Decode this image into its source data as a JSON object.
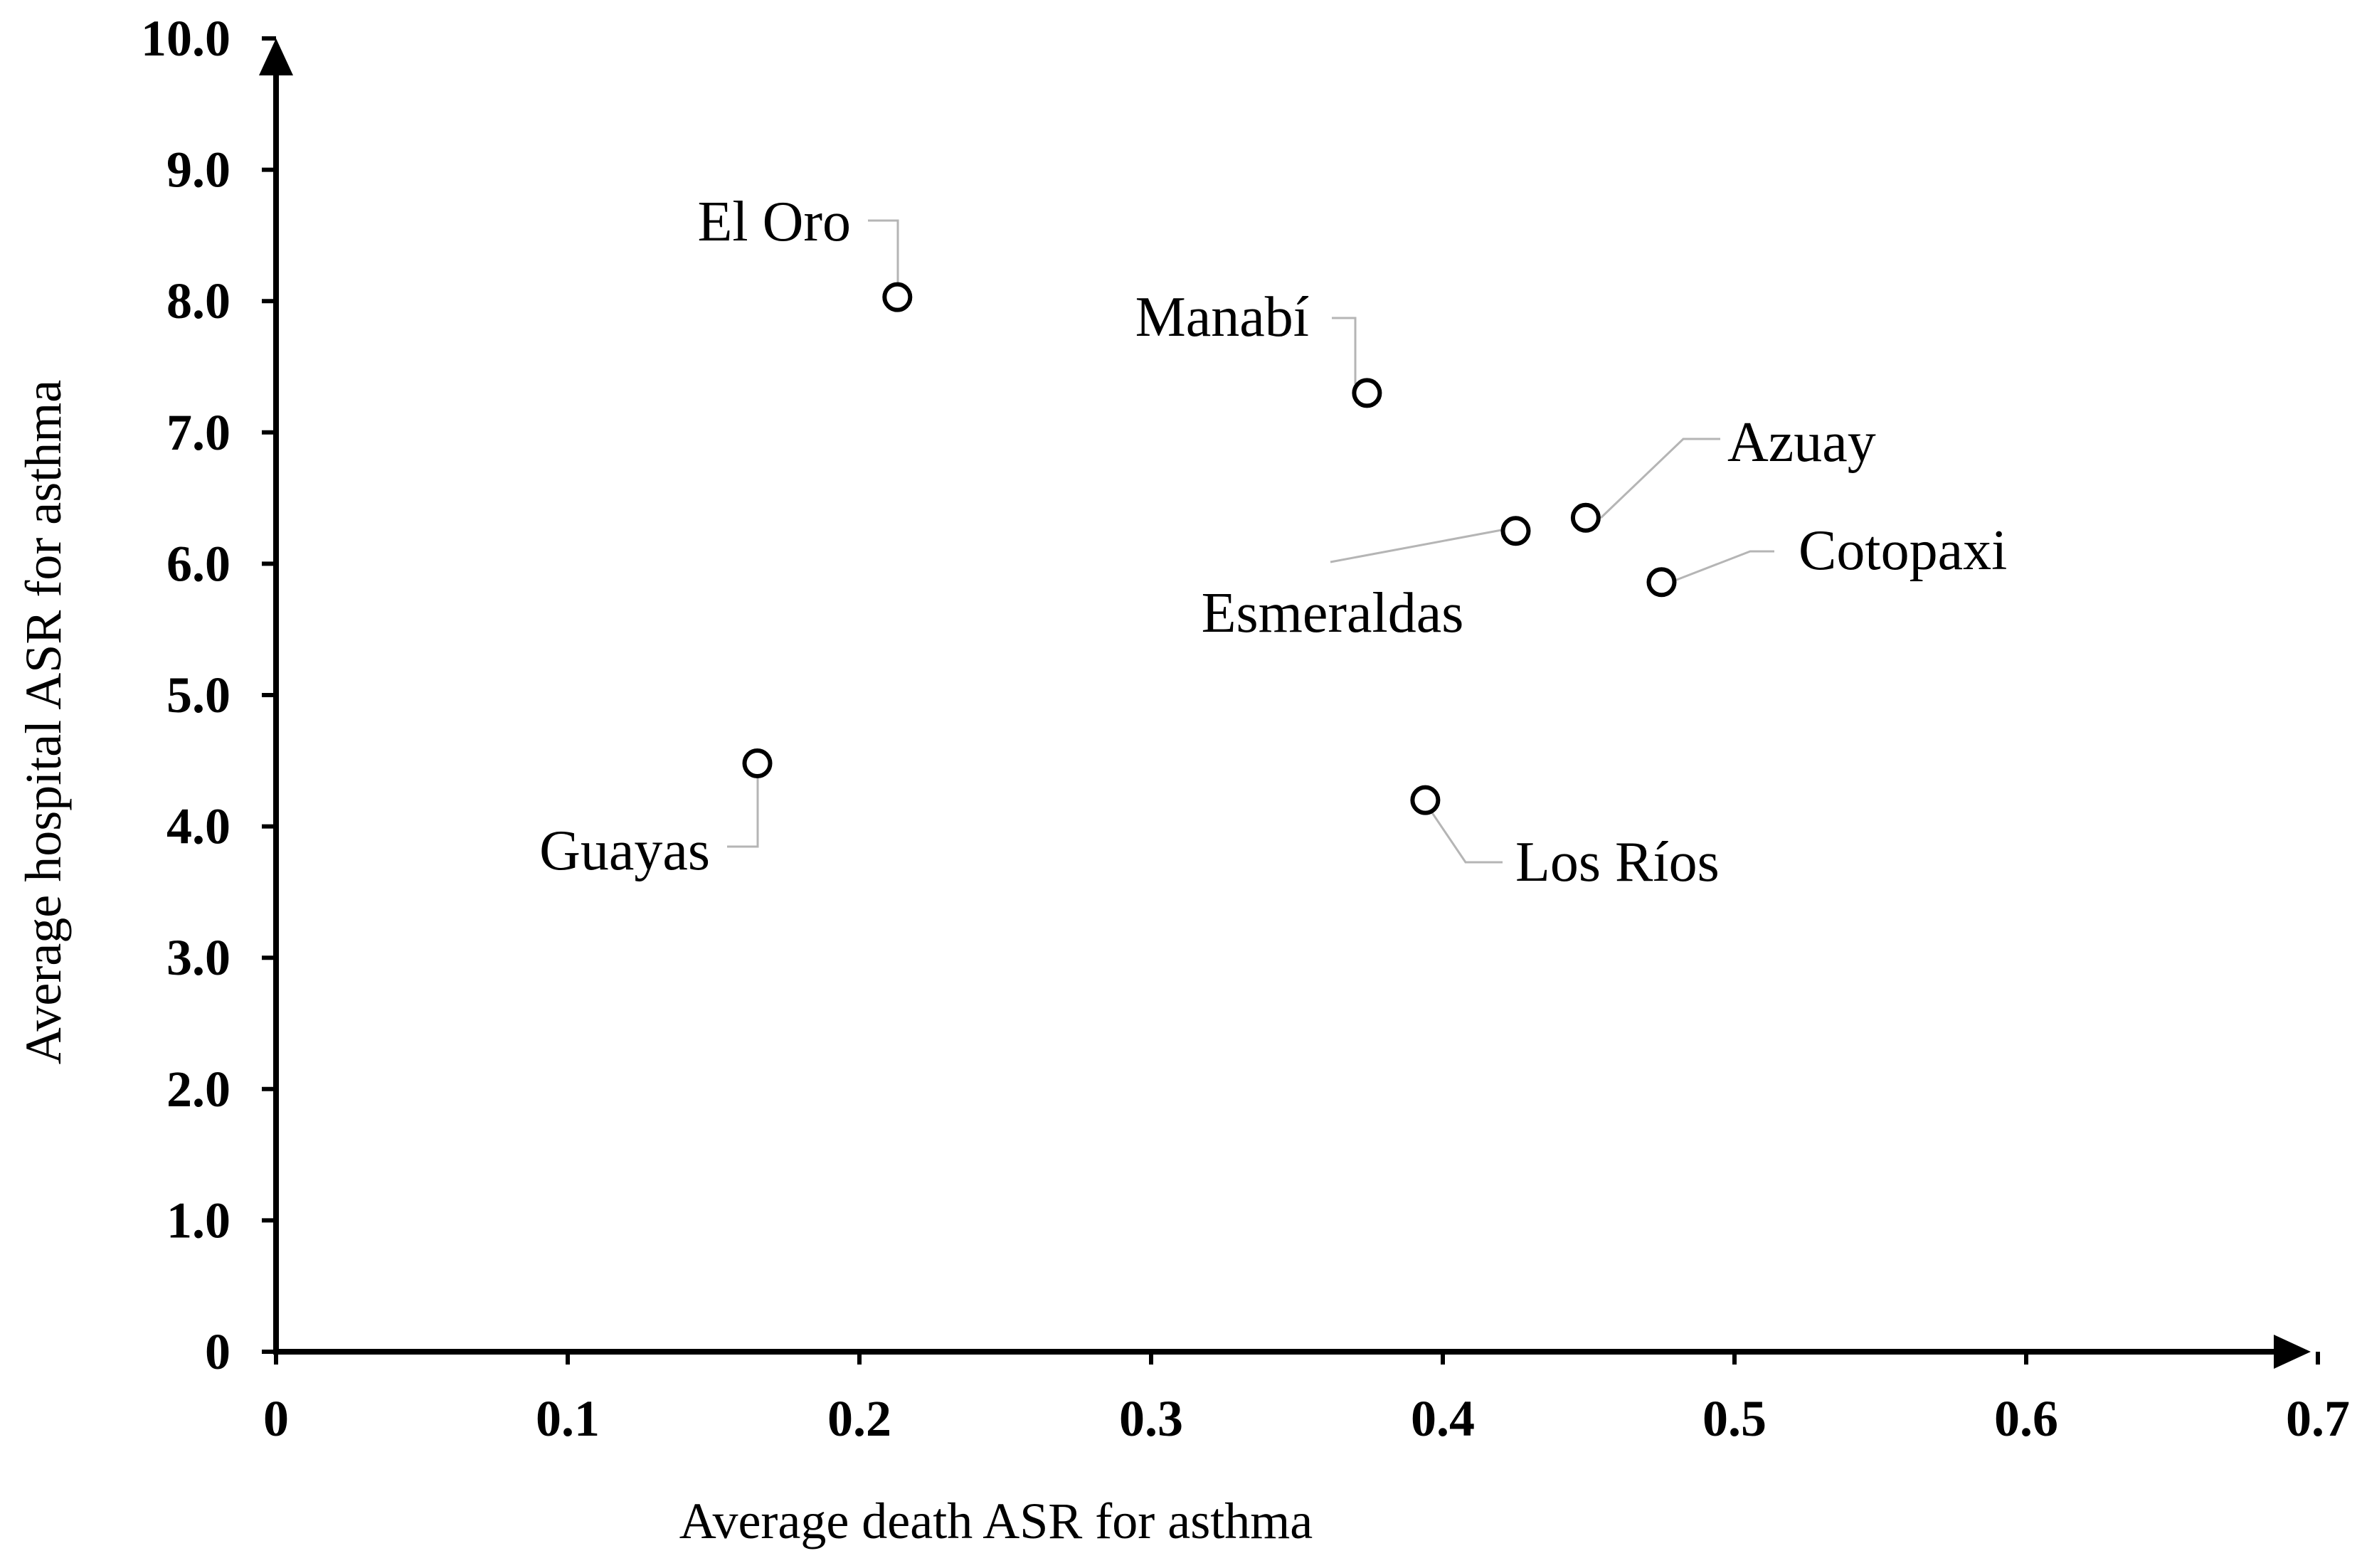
{
  "chart_data": {
    "type": "scatter",
    "xlabel": "Average death ASR for asthma",
    "ylabel": "Average hospital ASR for asthma",
    "xlim": [
      0,
      0.7
    ],
    "ylim": [
      0,
      10.0
    ],
    "x_ticks": [
      "0",
      "0.1",
      "0.2",
      "0.3",
      "0.4",
      "0.5",
      "0.6",
      "0.7"
    ],
    "y_ticks": [
      "0",
      "1.0",
      "2.0",
      "3.0",
      "4.0",
      "5.0",
      "6.0",
      "7.0",
      "8.0",
      "9.0",
      "10.0"
    ],
    "grid": false,
    "legend": "none",
    "marker": "open-circle",
    "points": [
      {
        "label": "El Oro",
        "x": 0.213,
        "y": 8.03
      },
      {
        "label": "Manabí",
        "x": 0.374,
        "y": 7.3
      },
      {
        "label": "Azuay",
        "x": 0.449,
        "y": 6.35
      },
      {
        "label": "Esmeraldas",
        "x": 0.425,
        "y": 6.25
      },
      {
        "label": "Cotopaxi",
        "x": 0.475,
        "y": 5.86
      },
      {
        "label": "Guayas",
        "x": 0.165,
        "y": 4.48
      },
      {
        "label": "Los Ríos",
        "x": 0.394,
        "y": 4.2
      }
    ]
  }
}
